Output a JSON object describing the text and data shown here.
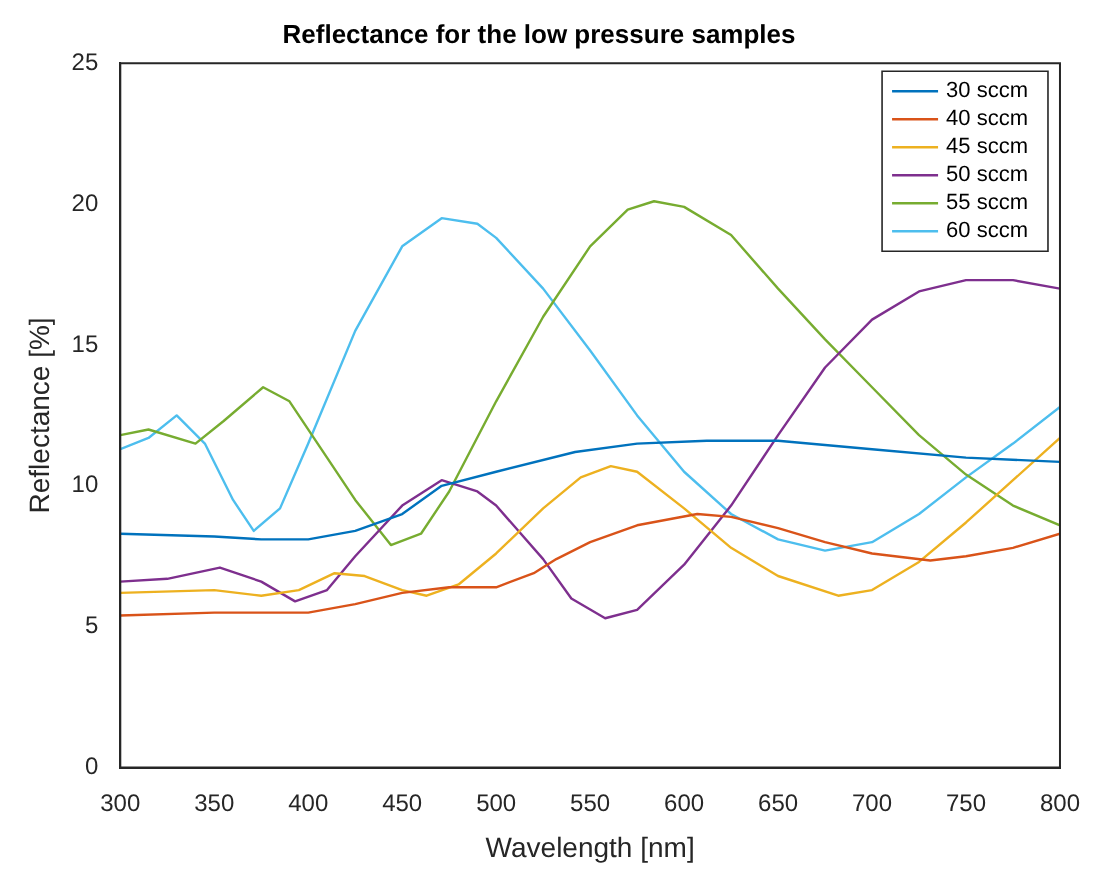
{
  "chart_data": {
    "type": "line",
    "title": "Reflectance for the low pressure samples",
    "xlabel": "Wavelength [nm]",
    "ylabel": "Reflectance [%]",
    "xlim": [
      300,
      800
    ],
    "ylim": [
      0,
      25
    ],
    "xticks": [
      300,
      350,
      400,
      450,
      500,
      550,
      600,
      650,
      700,
      750,
      800
    ],
    "yticks": [
      0,
      5,
      10,
      15,
      20,
      25
    ],
    "grid": false,
    "legend": "top right",
    "marker": "none",
    "line_style": "solid",
    "series": [
      {
        "name": "30 sccm",
        "color": "#0072bd",
        "x": [
          300,
          350,
          375,
          400,
          425,
          450,
          471,
          500,
          542,
          575,
          612,
          650,
          700,
          750,
          800
        ],
        "values": [
          8.3,
          8.2,
          8.1,
          8.1,
          8.4,
          9.0,
          10.0,
          10.5,
          11.2,
          11.5,
          11.6,
          11.6,
          11.3,
          11.0,
          10.85
        ]
      },
      {
        "name": "40 sccm",
        "color": "#d95319",
        "x": [
          300,
          350,
          400,
          425,
          450,
          475,
          500,
          520,
          532,
          550,
          575,
          607,
          625,
          650,
          675,
          700,
          731,
          750,
          775,
          800
        ],
        "values": [
          5.4,
          5.5,
          5.5,
          5.8,
          6.2,
          6.4,
          6.4,
          6.9,
          7.4,
          8.0,
          8.6,
          9.0,
          8.9,
          8.5,
          8.0,
          7.6,
          7.35,
          7.5,
          7.8,
          8.3
        ]
      },
      {
        "name": "45 sccm",
        "color": "#edb120",
        "x": [
          300,
          350,
          375,
          395,
          414,
          430,
          450,
          463,
          480,
          500,
          525,
          545,
          561,
          575,
          600,
          625,
          650,
          682,
          700,
          725,
          750,
          775,
          800
        ],
        "values": [
          6.2,
          6.3,
          6.1,
          6.3,
          6.9,
          6.8,
          6.3,
          6.1,
          6.5,
          7.6,
          9.2,
          10.3,
          10.7,
          10.5,
          9.2,
          7.8,
          6.8,
          6.1,
          6.3,
          7.3,
          8.7,
          10.2,
          11.7
        ]
      },
      {
        "name": "50 sccm",
        "color": "#7e2f8e",
        "x": [
          300,
          325,
          353,
          375,
          393,
          410,
          425,
          450,
          471,
          490,
          500,
          525,
          540,
          558,
          575,
          600,
          625,
          650,
          675,
          700,
          725,
          750,
          775,
          800
        ],
        "values": [
          6.6,
          6.7,
          7.1,
          6.6,
          5.9,
          6.3,
          7.5,
          9.3,
          10.2,
          9.8,
          9.3,
          7.4,
          6.0,
          5.3,
          5.6,
          7.2,
          9.3,
          11.8,
          14.2,
          15.9,
          16.9,
          17.3,
          17.3,
          17.0
        ]
      },
      {
        "name": "55 sccm",
        "color": "#77ac30",
        "x": [
          300,
          315,
          340,
          355,
          376,
          390,
          410,
          425,
          444,
          460,
          475,
          500,
          525,
          550,
          570,
          584,
          600,
          625,
          650,
          675,
          700,
          725,
          750,
          775,
          800
        ],
        "values": [
          11.8,
          12.0,
          11.5,
          12.3,
          13.5,
          13.0,
          11.0,
          9.5,
          7.9,
          8.3,
          9.8,
          13.0,
          16.0,
          18.5,
          19.8,
          20.1,
          19.9,
          18.9,
          17.0,
          15.2,
          13.5,
          11.8,
          10.4,
          9.3,
          8.6
        ]
      },
      {
        "name": "60 sccm",
        "color": "#4dbeee",
        "x": [
          300,
          315,
          330,
          345,
          360,
          371,
          385,
          400,
          425,
          450,
          471,
          490,
          500,
          525,
          550,
          575,
          600,
          625,
          650,
          675,
          700,
          725,
          750,
          775,
          800
        ],
        "values": [
          11.3,
          11.7,
          12.5,
          11.5,
          9.5,
          8.4,
          9.2,
          11.5,
          15.5,
          18.5,
          19.5,
          19.3,
          18.8,
          17.0,
          14.8,
          12.5,
          10.5,
          9.0,
          8.1,
          7.7,
          8.0,
          9.0,
          10.3,
          11.5,
          12.8
        ]
      }
    ]
  }
}
